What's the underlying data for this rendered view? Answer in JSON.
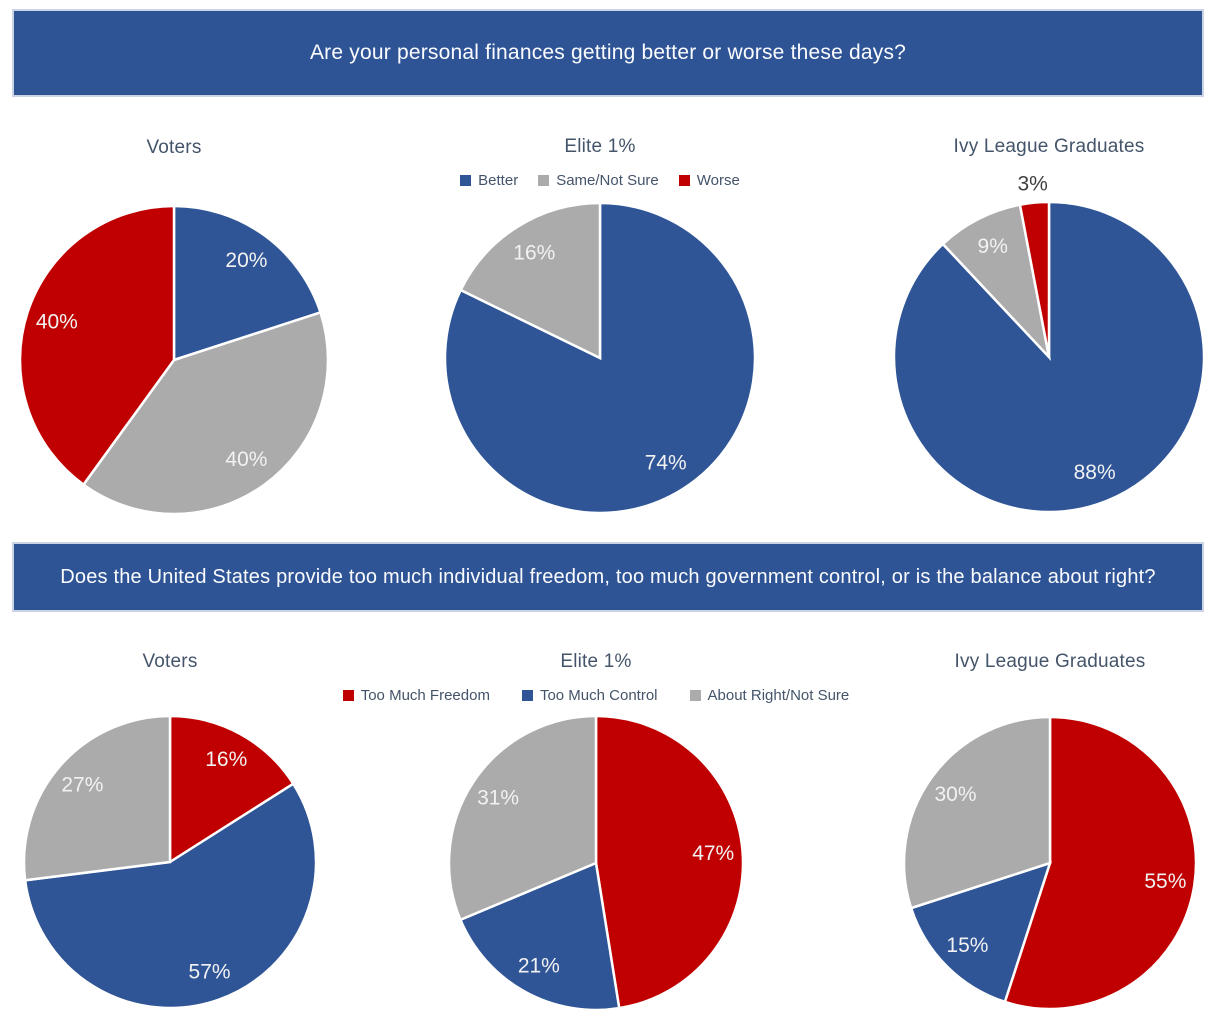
{
  "chart_data": [
    {
      "type": "pie",
      "question": "Are your personal finances getting better or worse these days?",
      "banner_color": "#2F5496",
      "legend_position": "top-center",
      "series": [
        {
          "name": "Better",
          "color": "#2F5597"
        },
        {
          "name": "Same/Not Sure",
          "color": "#ABABAB"
        },
        {
          "name": "Worse",
          "color": "#C00000"
        }
      ],
      "charts": [
        {
          "title": "Voters",
          "values": [
            20,
            40,
            40
          ],
          "labels": [
            "20%",
            "40%",
            "40%"
          ]
        },
        {
          "title": "Elite 1%",
          "values": [
            74,
            16,
            null
          ],
          "labels": [
            "74%",
            "16%",
            null
          ]
        },
        {
          "title": "Ivy League Graduates",
          "values": [
            88,
            9,
            3
          ],
          "labels": [
            "88%",
            "9%",
            "3%"
          ]
        }
      ]
    },
    {
      "type": "pie",
      "question": "Does the United States provide too much individual freedom, too much government control, or is the balance about right?",
      "banner_color": "#2F5496",
      "legend_position": "top-center",
      "series": [
        {
          "name": "Too Much Freedom",
          "color": "#C00000"
        },
        {
          "name": "Too Much Control",
          "color": "#2F5597"
        },
        {
          "name": "About Right/Not Sure",
          "color": "#ABABAB"
        }
      ],
      "charts": [
        {
          "title": "Voters",
          "values": [
            16,
            57,
            27
          ],
          "labels": [
            "16%",
            "57%",
            "27%"
          ]
        },
        {
          "title": "Elite 1%",
          "values": [
            47,
            21,
            31
          ],
          "labels": [
            "47%",
            "21%",
            "31%"
          ]
        },
        {
          "title": "Ivy League Graduates",
          "values": [
            55,
            15,
            30
          ],
          "labels": [
            "55%",
            "15%",
            "30%"
          ]
        }
      ]
    }
  ],
  "label_colors": {
    "inside": "#F2F2F2",
    "outside": "#3F3F3F"
  }
}
